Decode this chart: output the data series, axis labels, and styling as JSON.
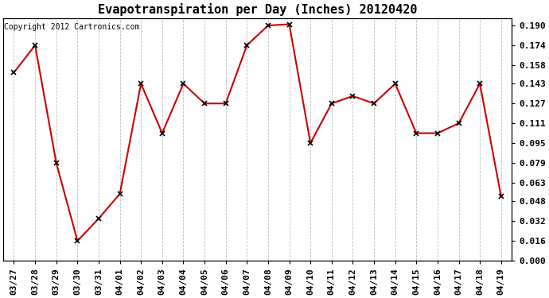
{
  "title": "Evapotranspiration per Day (Inches) 20120420",
  "copyright": "Copyright 2012 Cartronics.com",
  "x_labels": [
    "03/27",
    "03/28",
    "03/29",
    "03/30",
    "03/31",
    "04/01",
    "04/02",
    "04/03",
    "04/04",
    "04/05",
    "04/06",
    "04/07",
    "04/08",
    "04/09",
    "04/10",
    "04/11",
    "04/12",
    "04/13",
    "04/14",
    "04/15",
    "04/16",
    "04/17",
    "04/18",
    "04/19"
  ],
  "y_values": [
    0.152,
    0.174,
    0.079,
    0.016,
    0.034,
    0.054,
    0.143,
    0.103,
    0.143,
    0.127,
    0.127,
    0.174,
    0.19,
    0.191,
    0.095,
    0.127,
    0.133,
    0.127,
    0.143,
    0.103,
    0.103,
    0.111,
    0.143,
    0.052
  ],
  "line_color": "#cc0000",
  "marker": "x",
  "marker_color": "#000000",
  "marker_size": 4,
  "ylim_min": 0.0,
  "ylim_max": 0.196,
  "yticks": [
    0.0,
    0.016,
    0.032,
    0.048,
    0.063,
    0.079,
    0.095,
    0.111,
    0.127,
    0.143,
    0.158,
    0.174,
    0.19
  ],
  "ytick_labels": [
    "0.000",
    "0.016",
    "0.032",
    "0.048",
    "0.063",
    "0.079",
    "0.095",
    "0.111",
    "0.127",
    "0.143",
    "0.158",
    "0.174",
    "0.190"
  ],
  "background_color": "#ffffff",
  "plot_bg_color": "#ffffff",
  "grid_color": "#bbbbbb",
  "title_fontsize": 11,
  "copyright_fontsize": 7,
  "tick_fontsize": 8,
  "line_width": 1.5
}
